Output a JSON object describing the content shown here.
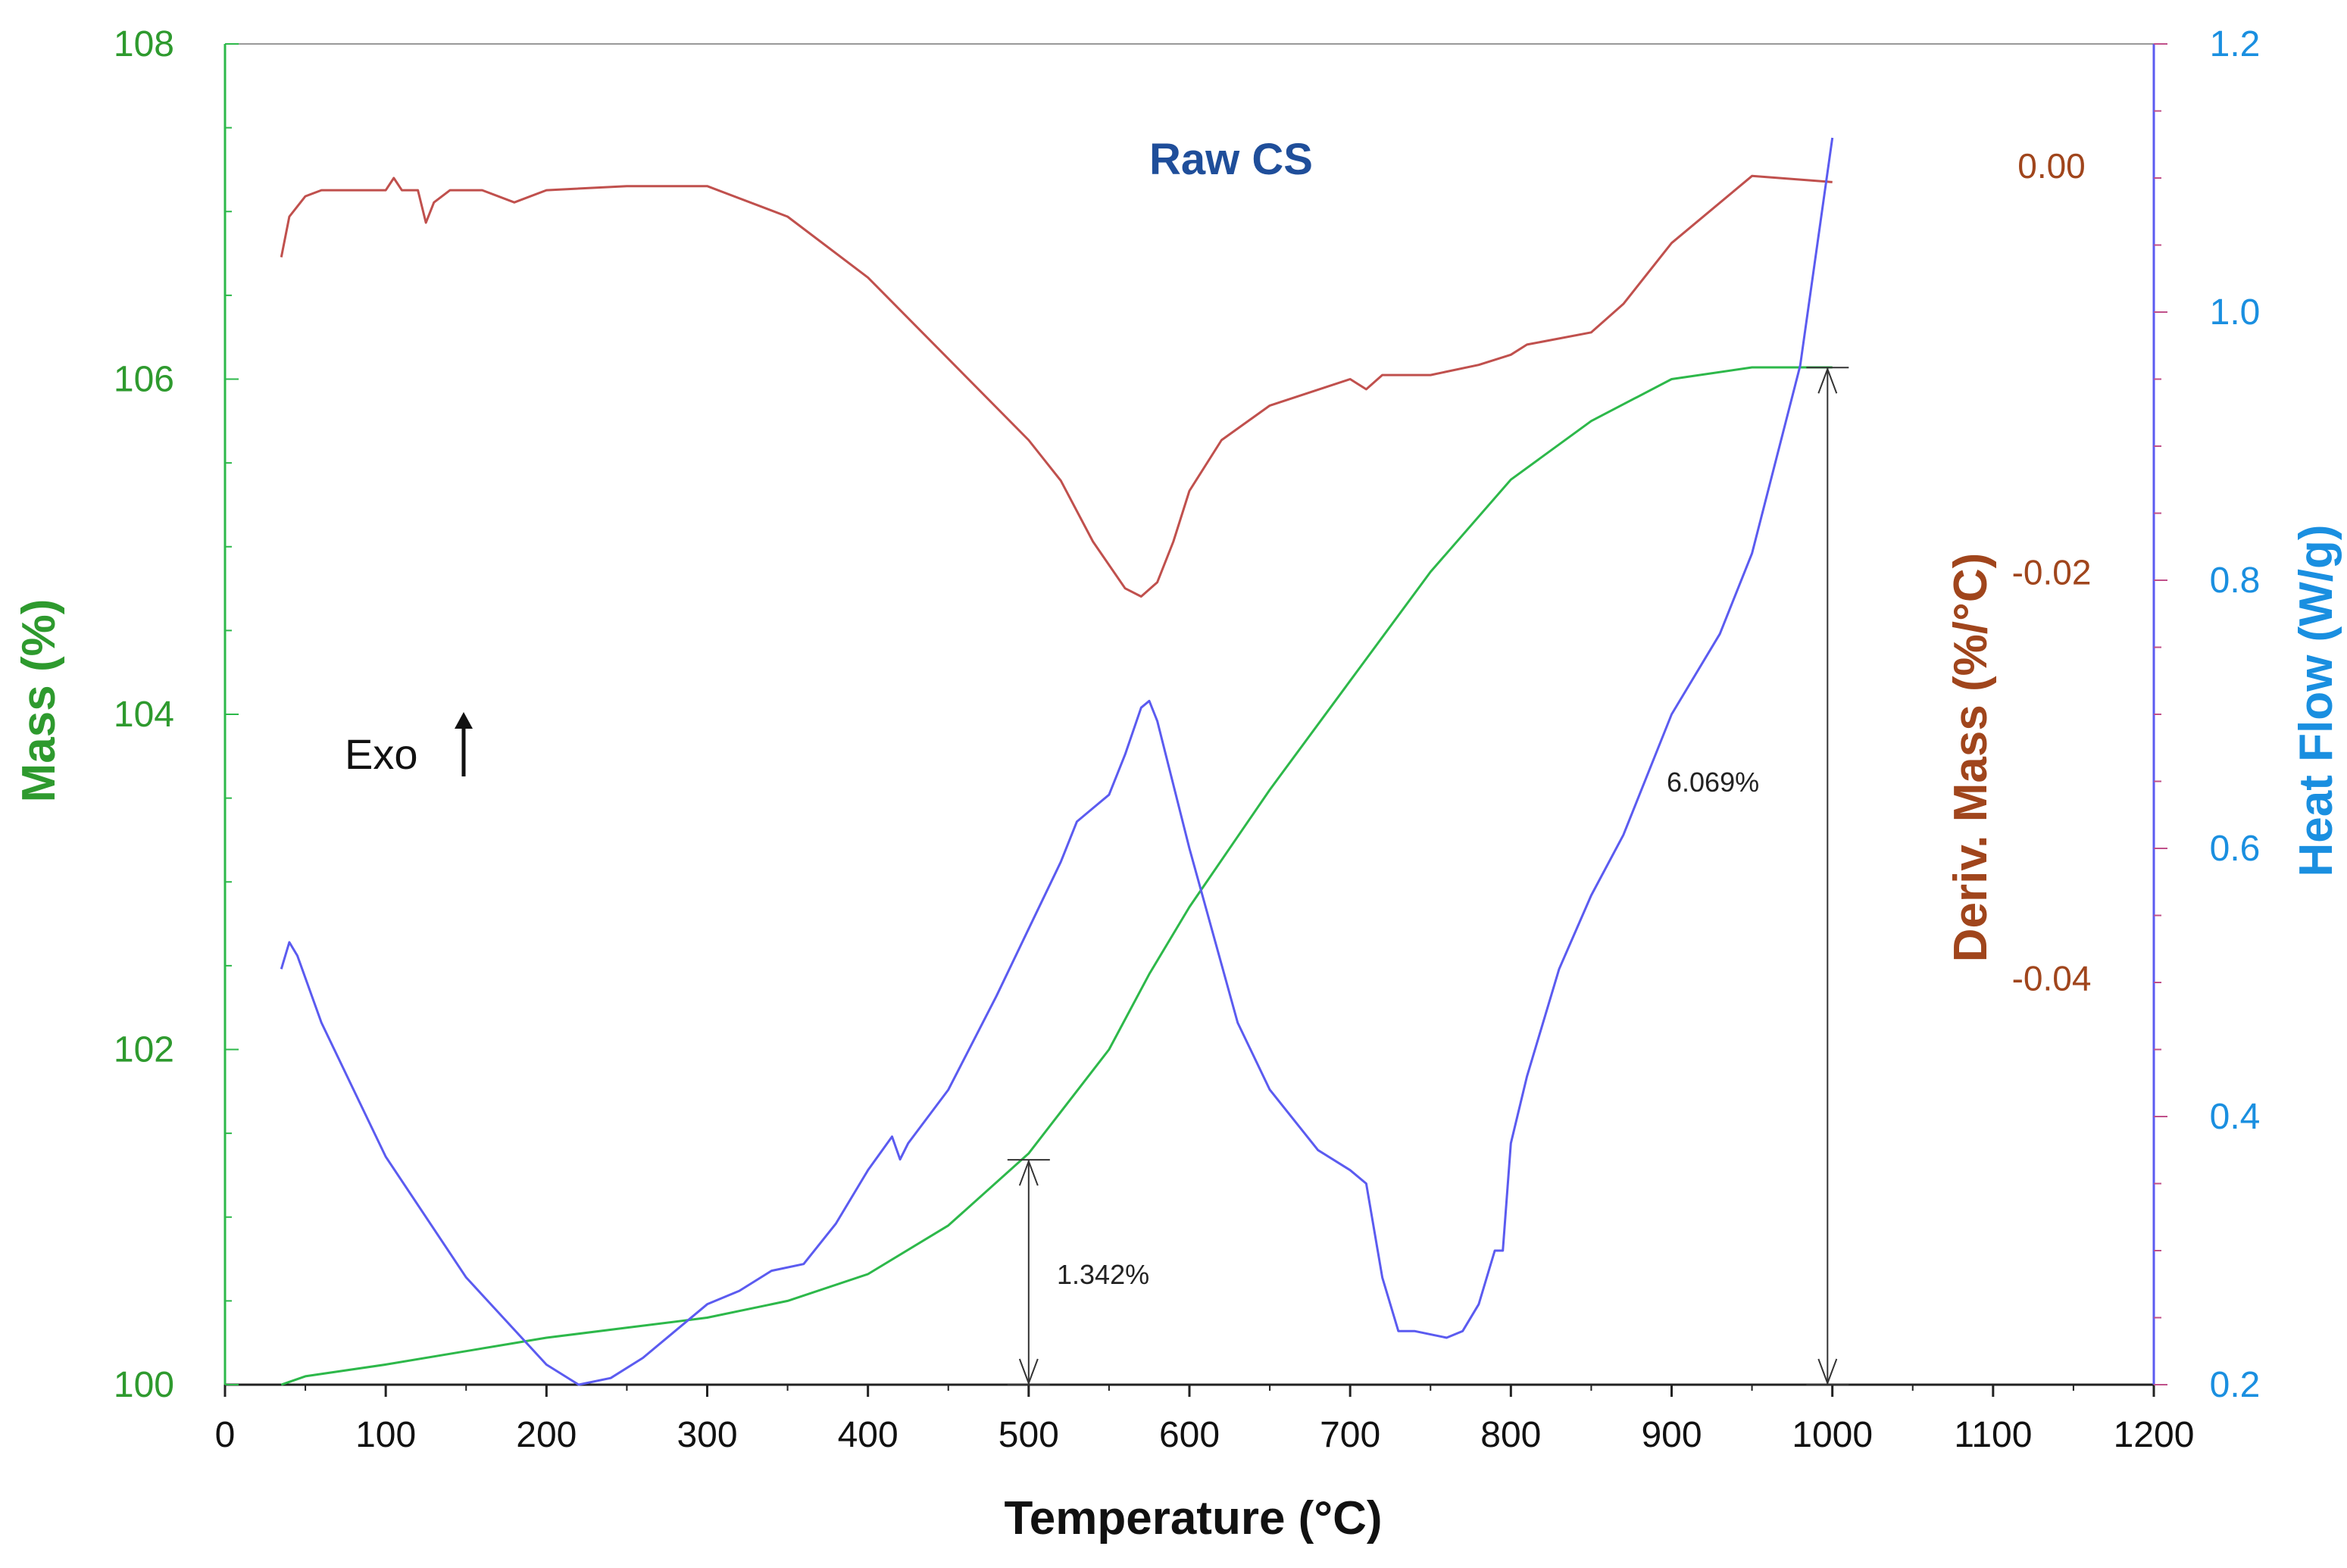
{
  "chart_data": {
    "type": "line",
    "title": "Raw CS",
    "xlabel": "Temperature (°C)",
    "ylabel_left": "Mass (%)",
    "ylabel_right1": "Deriv. Mass (%/°C)",
    "ylabel_right2": "Heat Flow (W/g)",
    "xlim": [
      0,
      1200
    ],
    "ylim_mass": [
      100,
      108
    ],
    "ylim_deriv": [
      -0.06,
      0.006
    ],
    "ylim_heat": [
      0.2,
      1.2
    ],
    "x_ticks": [
      "0",
      "100",
      "200",
      "300",
      "400",
      "500",
      "600",
      "700",
      "800",
      "900",
      "1000",
      "1100",
      "1200"
    ],
    "mass_ticks": [
      "100",
      "102",
      "104",
      "106",
      "108"
    ],
    "deriv_ticks": [
      "0.00",
      "-0.02",
      "-0.04"
    ],
    "heat_ticks": [
      "0.2",
      "0.4",
      "0.6",
      "0.8",
      "1.0",
      "1.2"
    ],
    "colors": {
      "mass": "#2db84a",
      "deriv": "#c0504d",
      "heat": "#5b5bf0",
      "mass_axis": "#3a9a3a",
      "deriv_axis": "#a0451c",
      "heat_axis": "#1a8fe0",
      "title": "#1f4e9a"
    },
    "annotations": {
      "exo_label": "Exo",
      "step1_label": "1.342%",
      "step2_label": "6.069%"
    },
    "series": [
      {
        "name": "Mass",
        "axis": "mass",
        "x": [
          35,
          50,
          100,
          150,
          200,
          250,
          300,
          350,
          400,
          450,
          500,
          550,
          575,
          600,
          650,
          700,
          750,
          800,
          850,
          900,
          950,
          1000
        ],
        "values": [
          100.0,
          100.05,
          100.12,
          100.2,
          100.28,
          100.34,
          100.4,
          100.5,
          100.66,
          100.95,
          101.38,
          102.0,
          102.45,
          102.85,
          103.55,
          104.2,
          104.85,
          105.4,
          105.75,
          106.0,
          106.07,
          106.07
        ]
      },
      {
        "name": "Deriv. Mass",
        "axis": "deriv",
        "x": [
          35,
          40,
          50,
          60,
          80,
          100,
          105,
          110,
          120,
          125,
          130,
          140,
          150,
          160,
          180,
          200,
          250,
          300,
          350,
          400,
          450,
          500,
          520,
          540,
          560,
          570,
          580,
          590,
          600,
          620,
          650,
          700,
          710,
          720,
          750,
          780,
          800,
          810,
          850,
          870,
          900,
          950,
          1000
        ],
        "values": [
          -0.0045,
          -0.0025,
          -0.0015,
          -0.0012,
          -0.0012,
          -0.0012,
          -0.0006,
          -0.0012,
          -0.0012,
          -0.0028,
          -0.0018,
          -0.0012,
          -0.0012,
          -0.0012,
          -0.0018,
          -0.0012,
          -0.001,
          -0.001,
          -0.0025,
          -0.0055,
          -0.0095,
          -0.0135,
          -0.0155,
          -0.0185,
          -0.0208,
          -0.0212,
          -0.0205,
          -0.0185,
          -0.016,
          -0.0135,
          -0.0118,
          -0.0105,
          -0.011,
          -0.0103,
          -0.0103,
          -0.0098,
          -0.0093,
          -0.0088,
          -0.0082,
          -0.0068,
          -0.0038,
          -0.0005,
          -0.0008
        ]
      },
      {
        "name": "Heat Flow",
        "axis": "heat",
        "x": [
          35,
          40,
          45,
          60,
          80,
          100,
          150,
          200,
          220,
          240,
          260,
          280,
          300,
          320,
          340,
          360,
          380,
          400,
          415,
          420,
          425,
          450,
          480,
          500,
          520,
          530,
          540,
          550,
          560,
          570,
          575,
          580,
          600,
          630,
          650,
          680,
          700,
          710,
          720,
          730,
          740,
          760,
          770,
          780,
          790,
          795,
          800,
          810,
          830,
          850,
          870,
          900,
          930,
          950,
          980,
          1000
        ],
        "values": [
          0.51,
          0.53,
          0.52,
          0.47,
          0.42,
          0.37,
          0.28,
          0.215,
          0.2,
          0.205,
          0.22,
          0.24,
          0.26,
          0.27,
          0.285,
          0.29,
          0.32,
          0.36,
          0.385,
          0.368,
          0.38,
          0.42,
          0.49,
          0.54,
          0.59,
          0.62,
          0.63,
          0.64,
          0.67,
          0.705,
          0.71,
          0.695,
          0.6,
          0.47,
          0.42,
          0.375,
          0.36,
          0.35,
          0.28,
          0.24,
          0.24,
          0.235,
          0.24,
          0.26,
          0.3,
          0.3,
          0.38,
          0.43,
          0.51,
          0.565,
          0.61,
          0.7,
          0.76,
          0.82,
          0.96,
          1.13
        ]
      }
    ]
  }
}
